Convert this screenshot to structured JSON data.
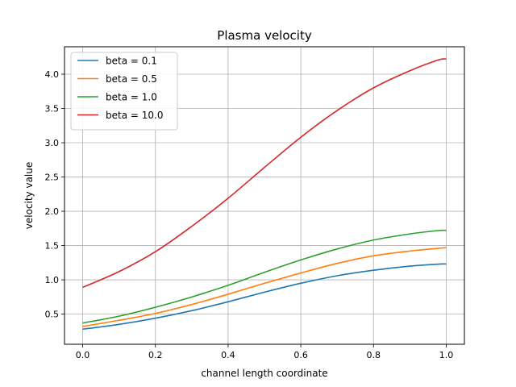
{
  "chart_data": {
    "type": "line",
    "title": "Plasma velocity",
    "xlabel": "channel length coordinate",
    "ylabel": "velocity value",
    "xlim": [
      -0.05,
      1.05
    ],
    "ylim": [
      0.06,
      4.4
    ],
    "xticks": [
      0.0,
      0.2,
      0.4,
      0.6,
      0.8,
      1.0
    ],
    "xtick_labels": [
      "0.0",
      "0.2",
      "0.4",
      "0.6",
      "0.8",
      "1.0"
    ],
    "yticks": [
      0.5,
      1.0,
      1.5,
      2.0,
      2.5,
      3.0,
      3.5,
      4.0
    ],
    "ytick_labels": [
      "0.5",
      "1.0",
      "1.5",
      "2.0",
      "2.5",
      "3.0",
      "3.5",
      "4.0"
    ],
    "grid": true,
    "legend_position": "top-left",
    "x": [
      0.0,
      0.1,
      0.2,
      0.3,
      0.4,
      0.5,
      0.6,
      0.7,
      0.8,
      0.9,
      0.98,
      1.0
    ],
    "series": [
      {
        "name": "beta = 0.1",
        "color": "#1f77b4",
        "values": [
          0.28,
          0.35,
          0.44,
          0.55,
          0.68,
          0.82,
          0.95,
          1.06,
          1.14,
          1.2,
          1.23,
          1.23
        ]
      },
      {
        "name": "beta = 0.5",
        "color": "#ff7f0e",
        "values": [
          0.32,
          0.41,
          0.51,
          0.64,
          0.79,
          0.95,
          1.1,
          1.24,
          1.35,
          1.42,
          1.46,
          1.47
        ]
      },
      {
        "name": "beta = 1.0",
        "color": "#2ca02c",
        "values": [
          0.37,
          0.47,
          0.6,
          0.75,
          0.92,
          1.11,
          1.29,
          1.45,
          1.58,
          1.67,
          1.72,
          1.72
        ]
      },
      {
        "name": "beta = 10.0",
        "color": "#d62728",
        "values": [
          0.89,
          1.12,
          1.41,
          1.78,
          2.19,
          2.64,
          3.08,
          3.47,
          3.8,
          4.05,
          4.21,
          4.22
        ]
      }
    ]
  }
}
